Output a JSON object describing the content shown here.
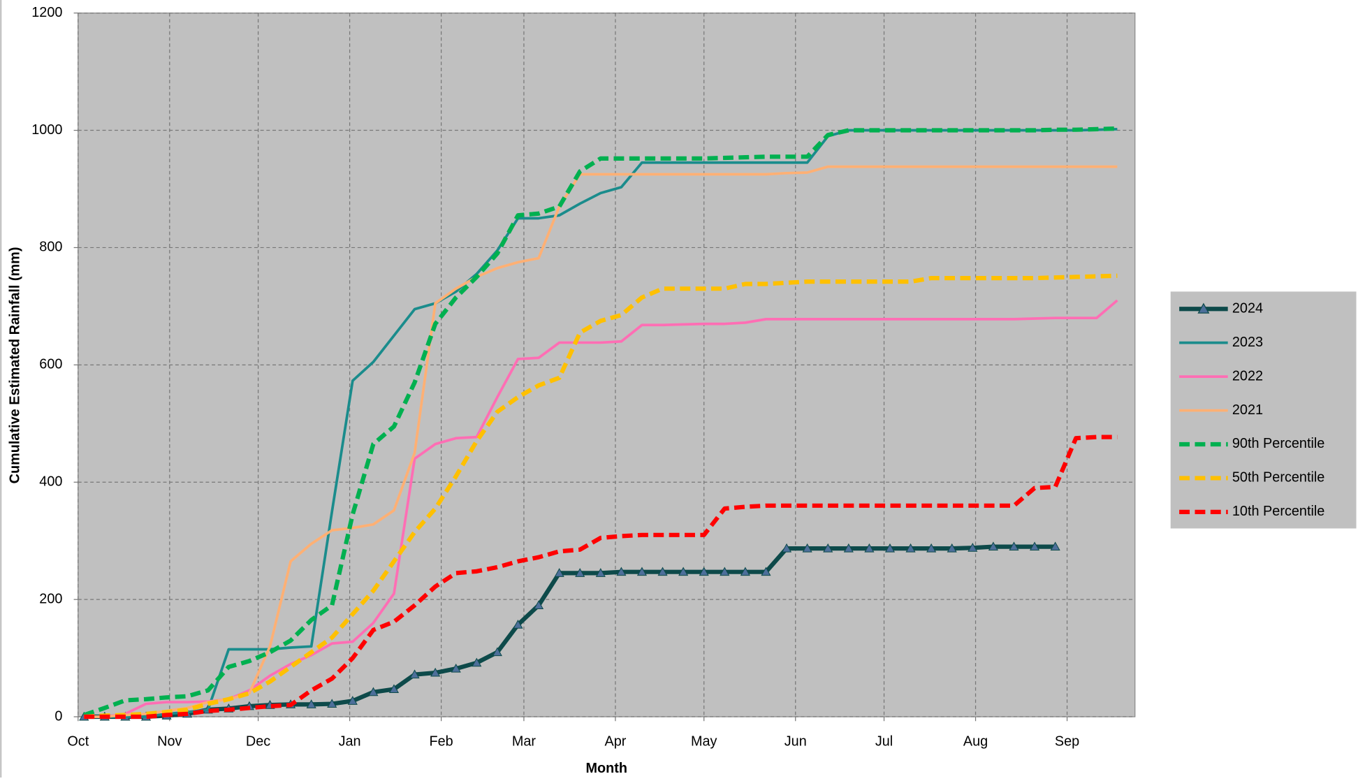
{
  "chart_data": {
    "type": "line",
    "x_label": "Month",
    "y_label": "Cumulative Estimated Rainfall (mm)",
    "x": [
      2,
      9,
      16,
      23,
      30,
      37,
      44,
      51,
      58,
      65,
      72,
      79,
      86,
      93,
      100,
      107,
      114,
      121,
      128,
      135,
      142,
      149,
      156,
      163,
      170,
      177,
      184,
      191,
      198,
      205,
      212,
      219,
      226,
      233,
      240,
      247,
      254,
      261,
      268,
      275,
      282,
      289,
      296,
      303,
      310,
      317,
      324,
      331,
      338,
      345,
      352
    ],
    "xlim": [
      0,
      358
    ],
    "xticks": [
      {
        "value": 0,
        "label": "Oct"
      },
      {
        "value": 31,
        "label": "Nov"
      },
      {
        "value": 61,
        "label": "Dec"
      },
      {
        "value": 92,
        "label": "Jan"
      },
      {
        "value": 123,
        "label": "Feb"
      },
      {
        "value": 151,
        "label": "Mar"
      },
      {
        "value": 182,
        "label": "Apr"
      },
      {
        "value": 212,
        "label": "May"
      },
      {
        "value": 243,
        "label": "Jun"
      },
      {
        "value": 273,
        "label": "Jul"
      },
      {
        "value": 304,
        "label": "Aug"
      },
      {
        "value": 335,
        "label": "Sep"
      }
    ],
    "ylim": [
      0,
      1200
    ],
    "yticks": [
      0,
      200,
      400,
      600,
      800,
      1000,
      1200
    ],
    "grid": true,
    "legend": "right",
    "background": "#c0c0c0",
    "series": [
      {
        "name": "2024",
        "color": "#0d4a4a",
        "dashed": false,
        "marker": "triangle",
        "marker_color": "#4d6f9a",
        "values": [
          0,
          0,
          0,
          0,
          2,
          5,
          12,
          14,
          18,
          20,
          21,
          21,
          22,
          27,
          42,
          47,
          72,
          75,
          82,
          92,
          110,
          157,
          190,
          245,
          245,
          245,
          247,
          247,
          247,
          247,
          247,
          247,
          247,
          247,
          287,
          287,
          287,
          287,
          287,
          287,
          287,
          287,
          287,
          288,
          290,
          290,
          290,
          290,
          null,
          null,
          null
        ]
      },
      {
        "name": "2023",
        "color": "#1a8c8c",
        "dashed": false,
        "values": [
          0,
          0,
          0,
          0,
          5,
          8,
          12,
          115,
          115,
          115,
          118,
          120,
          350,
          573,
          605,
          650,
          695,
          705,
          725,
          755,
          795,
          850,
          850,
          855,
          875,
          893,
          903,
          945,
          945,
          945,
          945,
          945,
          945,
          945,
          945,
          945,
          990,
          1000,
          1000,
          1000,
          1000,
          1000,
          1000,
          1000,
          1000,
          1000,
          1000,
          1000,
          1000,
          1001,
          1002
        ]
      },
      {
        "name": "2022",
        "color": "#ff6eb4",
        "dashed": false,
        "values": [
          0,
          0,
          5,
          22,
          25,
          25,
          26,
          30,
          45,
          70,
          90,
          105,
          125,
          128,
          160,
          210,
          440,
          465,
          475,
          477,
          545,
          610,
          612,
          638,
          638,
          638,
          640,
          668,
          668,
          669,
          670,
          670,
          672,
          678,
          678,
          678,
          678,
          678,
          678,
          678,
          678,
          678,
          678,
          678,
          678,
          678,
          679,
          680,
          680,
          680,
          710
        ]
      },
      {
        "name": "2021",
        "color": "#ffb074",
        "dashed": false,
        "values": [
          0,
          0,
          3,
          5,
          10,
          15,
          25,
          30,
          40,
          120,
          265,
          295,
          318,
          322,
          328,
          352,
          450,
          705,
          730,
          750,
          765,
          775,
          782,
          870,
          925,
          925,
          925,
          925,
          925,
          925,
          925,
          925,
          925,
          925,
          927,
          928,
          938,
          938,
          938,
          938,
          938,
          938,
          938,
          938,
          938,
          938,
          938,
          938,
          938,
          938,
          938
        ]
      },
      {
        "name": "90th Percentile",
        "color": "#00b050",
        "dashed": true,
        "values": [
          3,
          15,
          28,
          30,
          33,
          35,
          45,
          85,
          95,
          110,
          130,
          165,
          190,
          345,
          465,
          495,
          570,
          670,
          715,
          750,
          790,
          855,
          858,
          870,
          930,
          952,
          952,
          952,
          952,
          952,
          952,
          953,
          954,
          955,
          955,
          955,
          992,
          1000,
          1000,
          1000,
          1000,
          1000,
          1000,
          1000,
          1000,
          1000,
          1000,
          1001,
          1001,
          1002,
          1003
        ]
      },
      {
        "name": "50th Percentile",
        "color": "#ffc000",
        "dashed": true,
        "values": [
          0,
          2,
          3,
          5,
          8,
          12,
          22,
          30,
          40,
          60,
          85,
          110,
          135,
          175,
          215,
          265,
          315,
          355,
          410,
          470,
          520,
          545,
          565,
          578,
          655,
          675,
          685,
          715,
          730,
          730,
          730,
          730,
          738,
          738,
          740,
          742,
          742,
          742,
          742,
          742,
          742,
          748,
          748,
          748,
          748,
          748,
          748,
          749,
          750,
          751,
          752
        ]
      },
      {
        "name": "10th Percentile",
        "color": "#ff0000",
        "dashed": true,
        "values": [
          0,
          0,
          0,
          0,
          3,
          5,
          10,
          12,
          15,
          18,
          20,
          45,
          65,
          100,
          148,
          162,
          190,
          222,
          245,
          248,
          255,
          265,
          272,
          282,
          285,
          305,
          308,
          310,
          310,
          310,
          310,
          355,
          358,
          360,
          360,
          360,
          360,
          360,
          360,
          360,
          360,
          360,
          360,
          360,
          360,
          360,
          390,
          392,
          475,
          477,
          477
        ]
      }
    ]
  }
}
